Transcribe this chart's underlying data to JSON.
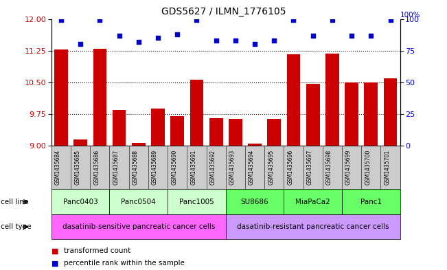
{
  "title": "GDS5627 / ILMN_1776105",
  "samples": [
    "GSM1435684",
    "GSM1435685",
    "GSM1435686",
    "GSM1435687",
    "GSM1435688",
    "GSM1435689",
    "GSM1435690",
    "GSM1435691",
    "GSM1435692",
    "GSM1435693",
    "GSM1435694",
    "GSM1435695",
    "GSM1435696",
    "GSM1435697",
    "GSM1435698",
    "GSM1435699",
    "GSM1435700",
    "GSM1435701"
  ],
  "bar_values": [
    11.28,
    9.15,
    11.3,
    9.85,
    9.07,
    9.88,
    9.7,
    10.57,
    9.65,
    9.63,
    9.05,
    9.63,
    11.17,
    10.47,
    11.18,
    10.5,
    10.5,
    10.6
  ],
  "dot_values": [
    99,
    80,
    99,
    87,
    82,
    85,
    88,
    99,
    83,
    83,
    80,
    83,
    99,
    87,
    99,
    87,
    87,
    99
  ],
  "ylim_left": [
    9,
    12
  ],
  "ylim_right": [
    0,
    100
  ],
  "yticks_left": [
    9,
    9.75,
    10.5,
    11.25,
    12
  ],
  "yticks_right": [
    0,
    25,
    50,
    75,
    100
  ],
  "bar_color": "#cc0000",
  "dot_color": "#0000cc",
  "cell_lines": [
    {
      "name": "Panc0403",
      "start": 0,
      "end": 2,
      "color": "#ccffcc"
    },
    {
      "name": "Panc0504",
      "start": 3,
      "end": 5,
      "color": "#ccffcc"
    },
    {
      "name": "Panc1005",
      "start": 6,
      "end": 8,
      "color": "#ccffcc"
    },
    {
      "name": "SU8686",
      "start": 9,
      "end": 11,
      "color": "#66ff66"
    },
    {
      "name": "MiaPaCa2",
      "start": 12,
      "end": 14,
      "color": "#66ff66"
    },
    {
      "name": "Panc1",
      "start": 15,
      "end": 17,
      "color": "#66ff66"
    }
  ],
  "cell_types": [
    {
      "name": "dasatinib-sensitive pancreatic cancer cells",
      "start": 0,
      "end": 8,
      "color": "#ff66ff"
    },
    {
      "name": "dasatinib-resistant pancreatic cancer cells",
      "start": 9,
      "end": 17,
      "color": "#cc99ff"
    }
  ],
  "legend_bar_label": "transformed count",
  "legend_dot_label": "percentile rank within the sample",
  "row_label_cell_line": "cell line",
  "row_label_cell_type": "cell type",
  "sample_bg_color": "#cccccc",
  "axis_label_color_left": "#cc0000",
  "axis_label_color_right": "#0000cc"
}
